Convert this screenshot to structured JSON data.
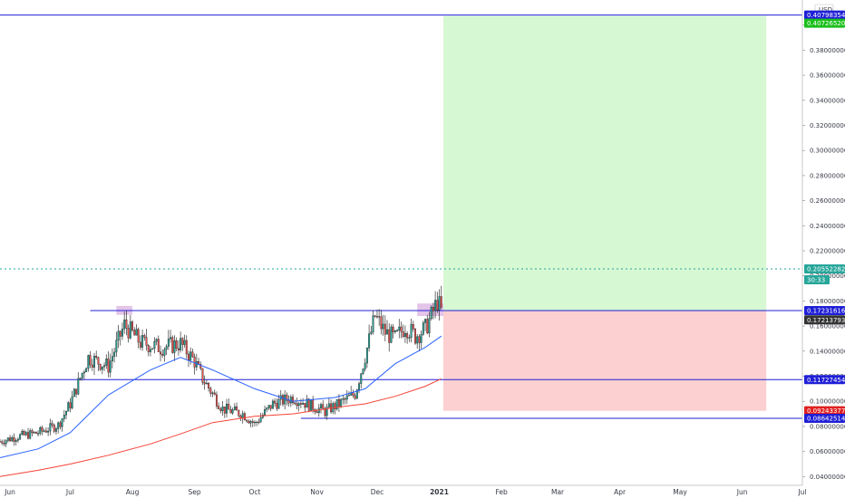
{
  "chart_data": {
    "type": "candlestick",
    "currency": "USD",
    "y_axis": {
      "scale": "linear",
      "ylim": [
        0.033,
        0.42
      ],
      "ticks": [
        "0.04000000",
        "0.06000000",
        "0.08000000",
        "0.10000000",
        "0.12000000",
        "0.14000000",
        "0.16000000",
        "0.18000000",
        "0.20000000",
        "0.22000000",
        "0.24000000",
        "0.26000000",
        "0.28000000",
        "0.30000000",
        "0.32000000",
        "0.34000000",
        "0.36000000",
        "0.38000000",
        "0.4"
      ],
      "tick_values": [
        0.04,
        0.06,
        0.08,
        0.1,
        0.12,
        0.14,
        0.16,
        0.18,
        0.2,
        0.22,
        0.24,
        0.26,
        0.28,
        0.3,
        0.32,
        0.34,
        0.36,
        0.38,
        0.4
      ]
    },
    "x_axis": {
      "range": [
        "2020-05-27",
        "2021-07-01"
      ],
      "ticks": [
        {
          "label": "Jun",
          "date": "2020-06-01"
        },
        {
          "label": "Jul",
          "date": "2020-07-01"
        },
        {
          "label": "Aug",
          "date": "2020-08-01"
        },
        {
          "label": "Sep",
          "date": "2020-09-01"
        },
        {
          "label": "Oct",
          "date": "2020-10-01"
        },
        {
          "label": "Nov",
          "date": "2020-11-01"
        },
        {
          "label": "Dec",
          "date": "2020-12-01"
        },
        {
          "label": "2021",
          "date": "2021-01-01",
          "bold": true
        },
        {
          "label": "Feb",
          "date": "2021-02-01"
        },
        {
          "label": "Mar",
          "date": "2021-03-01"
        },
        {
          "label": "Apr",
          "date": "2021-04-01"
        },
        {
          "label": "May",
          "date": "2021-05-01"
        },
        {
          "label": "Jun",
          "date": "2021-06-01"
        },
        {
          "label": "Jul",
          "date": "2021-07-01"
        }
      ]
    },
    "price_path": [
      {
        "date": "2020-05-27",
        "value": 0.068
      },
      {
        "date": "2020-06-05",
        "value": 0.072
      },
      {
        "date": "2020-06-15",
        "value": 0.075
      },
      {
        "date": "2020-06-25",
        "value": 0.081
      },
      {
        "date": "2020-07-01",
        "value": 0.098
      },
      {
        "date": "2020-07-10",
        "value": 0.135
      },
      {
        "date": "2020-07-20",
        "value": 0.128
      },
      {
        "date": "2020-07-28",
        "value": 0.161
      },
      {
        "date": "2020-08-05",
        "value": 0.147
      },
      {
        "date": "2020-08-15",
        "value": 0.143
      },
      {
        "date": "2020-08-25",
        "value": 0.146
      },
      {
        "date": "2020-09-01",
        "value": 0.132
      },
      {
        "date": "2020-09-05",
        "value": 0.118
      },
      {
        "date": "2020-09-15",
        "value": 0.094
      },
      {
        "date": "2020-09-25",
        "value": 0.09
      },
      {
        "date": "2020-10-01",
        "value": 0.082
      },
      {
        "date": "2020-10-10",
        "value": 0.098
      },
      {
        "date": "2020-10-20",
        "value": 0.103
      },
      {
        "date": "2020-10-30",
        "value": 0.096
      },
      {
        "date": "2020-11-05",
        "value": 0.092
      },
      {
        "date": "2020-11-12",
        "value": 0.098
      },
      {
        "date": "2020-11-20",
        "value": 0.106
      },
      {
        "date": "2020-11-25",
        "value": 0.136
      },
      {
        "date": "2020-11-30",
        "value": 0.168
      },
      {
        "date": "2020-12-05",
        "value": 0.155
      },
      {
        "date": "2020-12-10",
        "value": 0.15
      },
      {
        "date": "2020-12-15",
        "value": 0.16
      },
      {
        "date": "2020-12-20",
        "value": 0.152
      },
      {
        "date": "2020-12-25",
        "value": 0.158
      },
      {
        "date": "2020-12-28",
        "value": 0.168
      },
      {
        "date": "2020-12-31",
        "value": 0.18
      },
      {
        "date": "2021-01-02",
        "value": 0.172
      }
    ],
    "series": [
      {
        "name": "",
        "color": "#2962ff",
        "points": [
          {
            "date": "2020-05-27",
            "value": 0.055
          },
          {
            "date": "2020-06-15",
            "value": 0.062
          },
          {
            "date": "2020-07-01",
            "value": 0.075
          },
          {
            "date": "2020-07-20",
            "value": 0.105
          },
          {
            "date": "2020-08-10",
            "value": 0.125
          },
          {
            "date": "2020-08-25",
            "value": 0.135
          },
          {
            "date": "2020-09-10",
            "value": 0.125
          },
          {
            "date": "2020-10-01",
            "value": 0.11
          },
          {
            "date": "2020-10-20",
            "value": 0.1
          },
          {
            "date": "2020-11-10",
            "value": 0.103
          },
          {
            "date": "2020-11-25",
            "value": 0.11
          },
          {
            "date": "2020-12-10",
            "value": 0.13
          },
          {
            "date": "2020-12-25",
            "value": 0.143
          },
          {
            "date": "2021-01-02",
            "value": 0.152
          }
        ]
      },
      {
        "name": "",
        "color": "#f44336",
        "points": [
          {
            "date": "2020-05-27",
            "value": 0.04
          },
          {
            "date": "2020-06-15",
            "value": 0.045
          },
          {
            "date": "2020-07-01",
            "value": 0.05
          },
          {
            "date": "2020-07-20",
            "value": 0.057
          },
          {
            "date": "2020-08-10",
            "value": 0.066
          },
          {
            "date": "2020-08-25",
            "value": 0.074
          },
          {
            "date": "2020-09-10",
            "value": 0.083
          },
          {
            "date": "2020-10-01",
            "value": 0.088
          },
          {
            "date": "2020-10-20",
            "value": 0.09
          },
          {
            "date": "2020-11-10",
            "value": 0.095
          },
          {
            "date": "2020-11-25",
            "value": 0.098
          },
          {
            "date": "2020-12-10",
            "value": 0.104
          },
          {
            "date": "2020-12-25",
            "value": 0.112
          },
          {
            "date": "2021-01-02",
            "value": 0.118
          }
        ]
      }
    ],
    "horizontal_lines": [
      {
        "value": 0.40798354,
        "label": "0.40798354",
        "color": "#1f1fd6",
        "start": "2020-05-27"
      },
      {
        "value": 0.17231616,
        "label": "0.17231616",
        "color": "#1f1fd6",
        "start": "2020-07-11"
      },
      {
        "value": 0.11727454,
        "label": "0.11727454",
        "color": "#1f1fd6",
        "start": "2020-05-27"
      },
      {
        "value": 0.08642514,
        "label": "0.08642514",
        "color": "#1f1fd6",
        "start": "2020-10-24"
      }
    ],
    "current_price_line": {
      "value": 0.20552282,
      "color": "#26a69a"
    },
    "position": {
      "start": "2021-01-03",
      "end": "2021-06-13",
      "entry": 0.17231616,
      "target": 0.4072652,
      "stop": 0.09243377,
      "profit_color": "#d6f8d3",
      "loss_color": "#fcd0d0"
    },
    "highlight_boxes": [
      {
        "start": "2020-07-24",
        "end": "2020-08-01",
        "y1": 0.176,
        "y2": 0.169,
        "color": "#e1bee7"
      },
      {
        "start": "2020-12-21",
        "end": "2021-01-03",
        "y1": 0.178,
        "y2": 0.168,
        "color": "#e1bee7"
      }
    ],
    "price_tags": [
      {
        "label": "0.40798354",
        "value": 0.40798354,
        "bg": "#1f1fd6",
        "fg": "#ffffff"
      },
      {
        "label": "0.40726520",
        "value": 0.4072652,
        "bg": "#1bbf1b",
        "fg": "#ffffff",
        "offset": 8
      },
      {
        "label": "0.20552282",
        "value": 0.20552282,
        "bg": "#26a69a",
        "fg": "#ffffff"
      },
      {
        "label": "30:33",
        "value": 0.20552282,
        "bg": "#26a69a",
        "fg": "#ffffff",
        "offset": 12,
        "small": true
      },
      {
        "label": "0.17231616",
        "value": 0.17231616,
        "bg": "#1f1fd6",
        "fg": "#ffffff"
      },
      {
        "label": "0.17213793",
        "value": 0.17213793,
        "bg": "#333333",
        "fg": "#ffffff",
        "offset": 10
      },
      {
        "label": "0.11727454",
        "value": 0.11727454,
        "bg": "#1f1fd6",
        "fg": "#ffffff"
      },
      {
        "label": "0.09243377",
        "value": 0.09243377,
        "bg": "#e02020",
        "fg": "#ffffff"
      },
      {
        "label": "0.08642514",
        "value": 0.08642514,
        "bg": "#1f1fd6",
        "fg": "#ffffff"
      }
    ],
    "colors": {
      "up": "#26a69a",
      "down": "#ef5350",
      "axis_text": "#363a45",
      "border": "#c8c8c8"
    }
  }
}
